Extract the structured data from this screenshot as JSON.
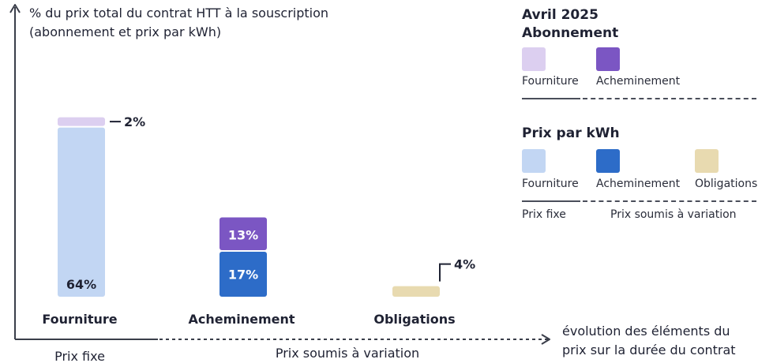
{
  "chart_data": {
    "type": "bar",
    "stacked": true,
    "ylabel_line1": "% du prix total du contrat HTT à la souscription",
    "ylabel_line2": "(abonnement et prix par kWh)",
    "xlabel_line1": "évolution des éléments du",
    "xlabel_line2": "prix sur la durée du contrat",
    "categories": [
      "Fourniture",
      "Acheminement",
      "Obligations"
    ],
    "segments": [
      {
        "category": "Fourniture",
        "group": "Prix par kWh",
        "component": "Fourniture",
        "value": 64,
        "label": "64%",
        "color": "#c2d6f3",
        "label_position": "inside"
      },
      {
        "category": "Fourniture",
        "group": "Abonnement",
        "component": "Fourniture",
        "value": 2,
        "label": "2%",
        "color": "#dccff0",
        "label_position": "callout"
      },
      {
        "category": "Acheminement",
        "group": "Prix par kWh",
        "component": "Acheminement",
        "value": 17,
        "label": "17%",
        "color": "#2d6cc8",
        "label_position": "inside"
      },
      {
        "category": "Acheminement",
        "group": "Abonnement",
        "component": "Acheminement",
        "value": 13,
        "label": "13%",
        "color": "#7b56c3",
        "label_position": "inside"
      },
      {
        "category": "Obligations",
        "group": "Prix par kWh",
        "component": "Obligations",
        "value": 4,
        "label": "4%",
        "color": "#e8dab0",
        "label_position": "callout"
      }
    ],
    "zone_fixed_label": "Prix fixe",
    "zone_variable_label": "Prix soumis à variation"
  },
  "legend": {
    "title_line1": "Avril 2025",
    "title_line2": "Abonnement",
    "abonnement_items": [
      {
        "label": "Fourniture",
        "color": "#dccff0"
      },
      {
        "label": "Acheminement",
        "color": "#7b56c3"
      }
    ],
    "kwh_title": "Prix par kWh",
    "kwh_items": [
      {
        "label": "Fourniture",
        "color": "#c2d6f3"
      },
      {
        "label": "Acheminement",
        "color": "#2d6cc8"
      },
      {
        "label": "Obligations",
        "color": "#e8dab0"
      }
    ],
    "fixed_label": "Prix fixe",
    "variable_label": "Prix soumis à variation"
  }
}
